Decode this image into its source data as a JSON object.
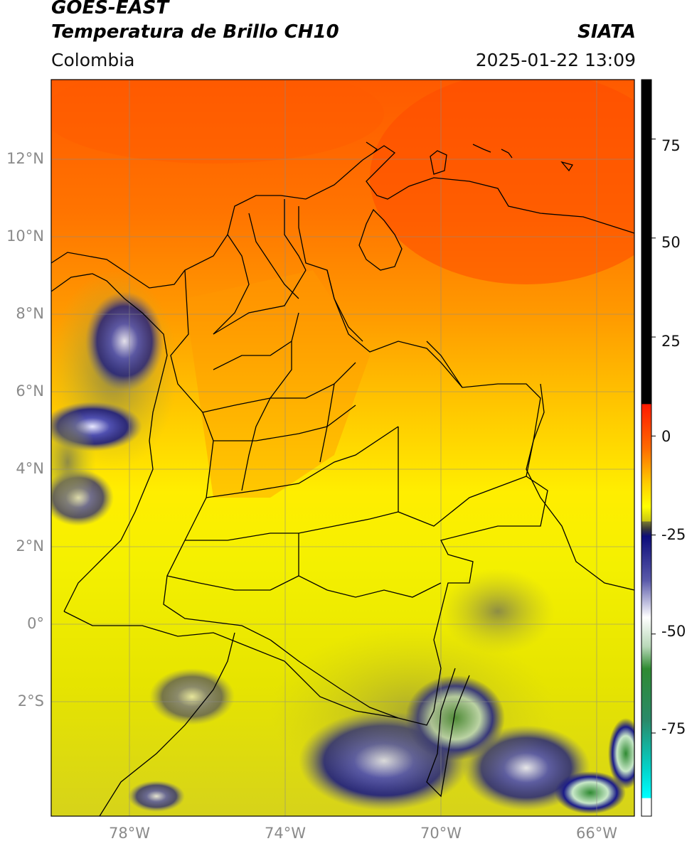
{
  "header": {
    "satellite": "GOES-EAST",
    "product": "Temperatura de Brillo CH10",
    "region": "Colombia",
    "brand": "SIATA",
    "datetime": "2025-01-22 13:09"
  },
  "map": {
    "lat_labels": [
      "12°N",
      "10°N",
      "8°N",
      "6°N",
      "4°N",
      "2°N",
      "0°",
      "2°S"
    ],
    "lon_labels": [
      "78°W",
      "74°W",
      "70°W",
      "66°W"
    ],
    "lon_range": [
      -80,
      -65
    ],
    "lat_range": [
      -5,
      14
    ]
  },
  "colorbar": {
    "ticks": [
      "75",
      "50",
      "25",
      "0",
      "-25",
      "-50",
      "-75"
    ],
    "tick_values": [
      75,
      50,
      25,
      0,
      -25,
      -50,
      -75
    ],
    "range": [
      -96,
      90
    ],
    "colors": {
      "warm_black": "#000000",
      "red": "#ff2a00",
      "orange": "#ff8800",
      "yellow": "#ffff00",
      "olive": "#9a9a24",
      "navy": "#0c0c7a",
      "white": "#ffffff",
      "green": "#2f8a32",
      "cyan": "#00e5e5"
    }
  }
}
